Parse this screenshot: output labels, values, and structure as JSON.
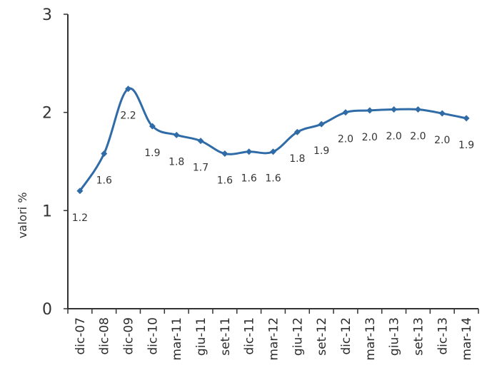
{
  "chart_data": {
    "type": "line",
    "title": "",
    "xlabel": "",
    "ylabel": "valori %",
    "categories": [
      "dic-07",
      "dic-08",
      "dic-09",
      "dic-10",
      "mar-11",
      "giu-11",
      "set-11",
      "dic-11",
      "mar-12",
      "giu-12",
      "set-12",
      "dic-12",
      "mar-13",
      "giu-13",
      "set-13",
      "dic-13",
      "mar-14"
    ],
    "series": [
      {
        "values": [
          1.2,
          1.58,
          2.24,
          1.86,
          1.77,
          1.71,
          1.58,
          1.6,
          1.6,
          1.8,
          1.88,
          2.0,
          2.02,
          2.03,
          2.03,
          1.99,
          1.94
        ],
        "labels": [
          "1.2",
          "1.6",
          "2.2",
          "1.9",
          "1.8",
          "1.7",
          "1.6",
          "1.6",
          "1.6",
          "1.8",
          "1.9",
          "2.0",
          "2.0",
          "2.0",
          "2.0",
          "2.0",
          "1.9"
        ],
        "color": "#2f6ba6"
      }
    ],
    "yticks": [
      "0",
      "1",
      "2",
      "3"
    ],
    "ylim": [
      0,
      3
    ],
    "grid": false,
    "legend": "none"
  }
}
